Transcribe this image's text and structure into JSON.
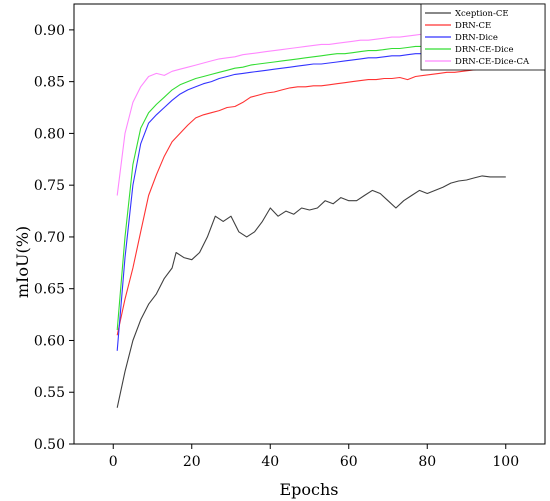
{
  "chart_data": {
    "type": "line",
    "xlabel": "Epochs",
    "ylabel": "mIoU(%)",
    "xlim": [
      -10,
      110
    ],
    "ylim": [
      0.5,
      0.925
    ],
    "xticks": [
      0,
      20,
      40,
      60,
      80,
      100
    ],
    "xtick_labels": [
      "0",
      "20",
      "40",
      "60",
      "80",
      "100"
    ],
    "yticks": [
      0.5,
      0.55,
      0.6,
      0.65,
      0.7,
      0.75,
      0.8,
      0.85,
      0.9
    ],
    "ytick_labels": [
      "0.50",
      "0.55",
      "0.60",
      "0.65",
      "0.70",
      "0.75",
      "0.80",
      "0.85",
      "0.90"
    ],
    "grid": false,
    "legend_position": "top-right",
    "series": [
      {
        "name": "Xception-CE",
        "color": "#404040",
        "points": [
          [
            1,
            0.535
          ],
          [
            3,
            0.57
          ],
          [
            5,
            0.6
          ],
          [
            7,
            0.62
          ],
          [
            9,
            0.635
          ],
          [
            11,
            0.645
          ],
          [
            13,
            0.66
          ],
          [
            15,
            0.67
          ],
          [
            16,
            0.685
          ],
          [
            18,
            0.68
          ],
          [
            20,
            0.678
          ],
          [
            22,
            0.685
          ],
          [
            24,
            0.7
          ],
          [
            26,
            0.72
          ],
          [
            28,
            0.715
          ],
          [
            30,
            0.72
          ],
          [
            32,
            0.705
          ],
          [
            34,
            0.7
          ],
          [
            36,
            0.705
          ],
          [
            38,
            0.715
          ],
          [
            40,
            0.728
          ],
          [
            42,
            0.72
          ],
          [
            44,
            0.725
          ],
          [
            46,
            0.722
          ],
          [
            48,
            0.728
          ],
          [
            50,
            0.726
          ],
          [
            52,
            0.728
          ],
          [
            54,
            0.735
          ],
          [
            56,
            0.732
          ],
          [
            58,
            0.738
          ],
          [
            60,
            0.735
          ],
          [
            62,
            0.735
          ],
          [
            64,
            0.74
          ],
          [
            66,
            0.745
          ],
          [
            68,
            0.742
          ],
          [
            70,
            0.735
          ],
          [
            72,
            0.728
          ],
          [
            74,
            0.735
          ],
          [
            76,
            0.74
          ],
          [
            78,
            0.745
          ],
          [
            80,
            0.742
          ],
          [
            82,
            0.745
          ],
          [
            84,
            0.748
          ],
          [
            86,
            0.752
          ],
          [
            88,
            0.754
          ],
          [
            90,
            0.755
          ],
          [
            92,
            0.757
          ],
          [
            94,
            0.759
          ],
          [
            96,
            0.758
          ],
          [
            98,
            0.758
          ],
          [
            100,
            0.758
          ]
        ]
      },
      {
        "name": "DRN-CE",
        "color": "#ff3333",
        "points": [
          [
            1,
            0.605
          ],
          [
            3,
            0.64
          ],
          [
            5,
            0.67
          ],
          [
            7,
            0.705
          ],
          [
            9,
            0.74
          ],
          [
            11,
            0.76
          ],
          [
            13,
            0.778
          ],
          [
            15,
            0.792
          ],
          [
            17,
            0.8
          ],
          [
            19,
            0.808
          ],
          [
            21,
            0.815
          ],
          [
            23,
            0.818
          ],
          [
            25,
            0.82
          ],
          [
            27,
            0.822
          ],
          [
            29,
            0.825
          ],
          [
            31,
            0.826
          ],
          [
            33,
            0.83
          ],
          [
            35,
            0.835
          ],
          [
            37,
            0.837
          ],
          [
            39,
            0.839
          ],
          [
            41,
            0.84
          ],
          [
            43,
            0.842
          ],
          [
            45,
            0.844
          ],
          [
            47,
            0.845
          ],
          [
            49,
            0.845
          ],
          [
            51,
            0.846
          ],
          [
            53,
            0.846
          ],
          [
            55,
            0.847
          ],
          [
            57,
            0.848
          ],
          [
            59,
            0.849
          ],
          [
            61,
            0.85
          ],
          [
            63,
            0.851
          ],
          [
            65,
            0.852
          ],
          [
            67,
            0.852
          ],
          [
            69,
            0.853
          ],
          [
            71,
            0.853
          ],
          [
            73,
            0.854
          ],
          [
            75,
            0.852
          ],
          [
            77,
            0.855
          ],
          [
            79,
            0.856
          ],
          [
            81,
            0.857
          ],
          [
            83,
            0.858
          ],
          [
            85,
            0.859
          ],
          [
            87,
            0.859
          ],
          [
            89,
            0.86
          ],
          [
            91,
            0.861
          ],
          [
            93,
            0.862
          ],
          [
            95,
            0.863
          ],
          [
            97,
            0.865
          ],
          [
            99,
            0.866
          ],
          [
            100,
            0.866
          ]
        ]
      },
      {
        "name": "DRN-Dice",
        "color": "#3333ff",
        "points": [
          [
            1,
            0.59
          ],
          [
            3,
            0.68
          ],
          [
            5,
            0.75
          ],
          [
            7,
            0.79
          ],
          [
            9,
            0.81
          ],
          [
            11,
            0.818
          ],
          [
            13,
            0.825
          ],
          [
            15,
            0.832
          ],
          [
            17,
            0.838
          ],
          [
            19,
            0.842
          ],
          [
            21,
            0.845
          ],
          [
            23,
            0.848
          ],
          [
            25,
            0.85
          ],
          [
            27,
            0.853
          ],
          [
            29,
            0.855
          ],
          [
            31,
            0.857
          ],
          [
            33,
            0.858
          ],
          [
            35,
            0.859
          ],
          [
            37,
            0.86
          ],
          [
            39,
            0.861
          ],
          [
            41,
            0.862
          ],
          [
            43,
            0.863
          ],
          [
            45,
            0.864
          ],
          [
            47,
            0.865
          ],
          [
            49,
            0.866
          ],
          [
            51,
            0.867
          ],
          [
            53,
            0.867
          ],
          [
            55,
            0.868
          ],
          [
            57,
            0.869
          ],
          [
            59,
            0.87
          ],
          [
            61,
            0.871
          ],
          [
            63,
            0.872
          ],
          [
            65,
            0.873
          ],
          [
            67,
            0.873
          ],
          [
            69,
            0.874
          ],
          [
            71,
            0.875
          ],
          [
            73,
            0.875
          ],
          [
            75,
            0.876
          ],
          [
            77,
            0.877
          ],
          [
            79,
            0.877
          ],
          [
            81,
            0.878
          ],
          [
            83,
            0.878
          ],
          [
            85,
            0.879
          ],
          [
            87,
            0.879
          ],
          [
            89,
            0.88
          ],
          [
            91,
            0.881
          ],
          [
            93,
            0.881
          ],
          [
            95,
            0.882
          ],
          [
            97,
            0.882
          ],
          [
            99,
            0.883
          ],
          [
            100,
            0.883
          ]
        ]
      },
      {
        "name": "DRN-CE-Dice",
        "color": "#33dd33",
        "points": [
          [
            1,
            0.61
          ],
          [
            3,
            0.7
          ],
          [
            5,
            0.77
          ],
          [
            7,
            0.805
          ],
          [
            9,
            0.82
          ],
          [
            11,
            0.828
          ],
          [
            13,
            0.835
          ],
          [
            15,
            0.842
          ],
          [
            17,
            0.847
          ],
          [
            19,
            0.85
          ],
          [
            21,
            0.853
          ],
          [
            23,
            0.855
          ],
          [
            25,
            0.857
          ],
          [
            27,
            0.859
          ],
          [
            29,
            0.861
          ],
          [
            31,
            0.863
          ],
          [
            33,
            0.864
          ],
          [
            35,
            0.866
          ],
          [
            37,
            0.867
          ],
          [
            39,
            0.868
          ],
          [
            41,
            0.869
          ],
          [
            43,
            0.87
          ],
          [
            45,
            0.871
          ],
          [
            47,
            0.872
          ],
          [
            49,
            0.873
          ],
          [
            51,
            0.874
          ],
          [
            53,
            0.875
          ],
          [
            55,
            0.876
          ],
          [
            57,
            0.877
          ],
          [
            59,
            0.877
          ],
          [
            61,
            0.878
          ],
          [
            63,
            0.879
          ],
          [
            65,
            0.88
          ],
          [
            67,
            0.88
          ],
          [
            69,
            0.881
          ],
          [
            71,
            0.882
          ],
          [
            73,
            0.882
          ],
          [
            75,
            0.883
          ],
          [
            77,
            0.884
          ],
          [
            79,
            0.884
          ],
          [
            81,
            0.885
          ],
          [
            83,
            0.885
          ],
          [
            85,
            0.886
          ],
          [
            87,
            0.886
          ],
          [
            89,
            0.887
          ],
          [
            91,
            0.887
          ],
          [
            93,
            0.888
          ],
          [
            95,
            0.888
          ],
          [
            97,
            0.889
          ],
          [
            99,
            0.89
          ],
          [
            100,
            0.89
          ]
        ]
      },
      {
        "name": "DRN-CE-Dice-CA",
        "color": "#ff88ff",
        "points": [
          [
            1,
            0.74
          ],
          [
            3,
            0.8
          ],
          [
            5,
            0.83
          ],
          [
            7,
            0.845
          ],
          [
            9,
            0.855
          ],
          [
            11,
            0.858
          ],
          [
            13,
            0.856
          ],
          [
            15,
            0.86
          ],
          [
            17,
            0.862
          ],
          [
            19,
            0.864
          ],
          [
            21,
            0.866
          ],
          [
            23,
            0.868
          ],
          [
            25,
            0.87
          ],
          [
            27,
            0.872
          ],
          [
            29,
            0.873
          ],
          [
            31,
            0.874
          ],
          [
            33,
            0.876
          ],
          [
            35,
            0.877
          ],
          [
            37,
            0.878
          ],
          [
            39,
            0.879
          ],
          [
            41,
            0.88
          ],
          [
            43,
            0.881
          ],
          [
            45,
            0.882
          ],
          [
            47,
            0.883
          ],
          [
            49,
            0.884
          ],
          [
            51,
            0.885
          ],
          [
            53,
            0.886
          ],
          [
            55,
            0.886
          ],
          [
            57,
            0.887
          ],
          [
            59,
            0.888
          ],
          [
            61,
            0.889
          ],
          [
            63,
            0.89
          ],
          [
            65,
            0.89
          ],
          [
            67,
            0.891
          ],
          [
            69,
            0.892
          ],
          [
            71,
            0.893
          ],
          [
            73,
            0.893
          ],
          [
            75,
            0.894
          ],
          [
            77,
            0.895
          ],
          [
            79,
            0.896
          ],
          [
            81,
            0.896
          ],
          [
            83,
            0.897
          ],
          [
            85,
            0.898
          ],
          [
            87,
            0.898
          ],
          [
            89,
            0.899
          ],
          [
            91,
            0.899
          ],
          [
            93,
            0.9
          ],
          [
            95,
            0.901
          ],
          [
            97,
            0.901
          ],
          [
            99,
            0.902
          ],
          [
            100,
            0.902
          ]
        ]
      }
    ]
  }
}
